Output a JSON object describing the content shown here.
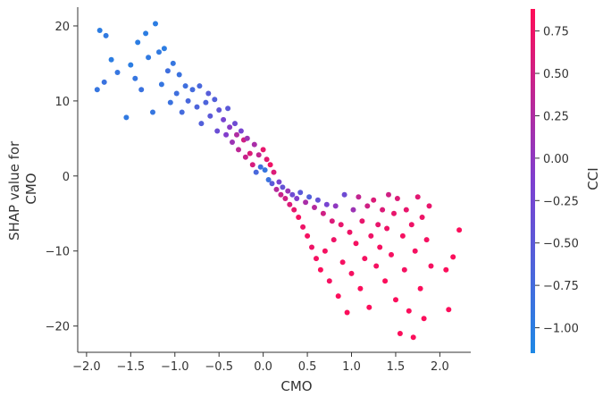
{
  "chart_data": {
    "type": "scatter",
    "title": "",
    "xlabel": "CMO",
    "ylabel": "SHAP value for\nCMO",
    "xlim": [
      -2.1,
      2.35
    ],
    "ylim": [
      -23.5,
      22.5
    ],
    "xticks": [
      -2.0,
      -1.5,
      -1.0,
      -0.5,
      0.0,
      0.5,
      1.0,
      1.5,
      2.0
    ],
    "xtick_labels": [
      "−2.0",
      "−1.5",
      "−1.0",
      "−0.5",
      "0.0",
      "0.5",
      "1.0",
      "1.5",
      "2.0"
    ],
    "yticks": [
      20,
      10,
      0,
      -10,
      -20
    ],
    "ytick_labels": [
      "20",
      "10",
      "0",
      "−10",
      "−20"
    ],
    "grid": false,
    "colorbar": {
      "label": "CCI",
      "range": [
        -1.15,
        0.88
      ],
      "ticks": [
        0.75,
        0.5,
        0.25,
        0.0,
        -0.25,
        -0.5,
        -0.75,
        -1.0
      ],
      "tick_labels": [
        "0.75",
        "0.50",
        "0.25",
        "0.00",
        "−0.25",
        "−0.50",
        "−0.75",
        "−1.00"
      ],
      "color_low": "#1e88e5",
      "color_mid": "#7e3fd0",
      "color_high": "#ff0d57"
    },
    "series": [
      {
        "points": [
          [
            -1.85,
            19.4,
            -1.0
          ],
          [
            -1.78,
            18.7,
            -0.95
          ],
          [
            -1.88,
            11.5,
            -0.9
          ],
          [
            -1.8,
            12.5,
            -0.85
          ],
          [
            -1.72,
            15.5,
            -1.0
          ],
          [
            -1.65,
            13.8,
            -0.9
          ],
          [
            -1.55,
            7.8,
            -0.95
          ],
          [
            -1.5,
            14.8,
            -1.0
          ],
          [
            -1.45,
            13.0,
            -0.9
          ],
          [
            -1.42,
            17.8,
            -1.0
          ],
          [
            -1.38,
            11.5,
            -0.85
          ],
          [
            -1.33,
            19.0,
            -1.0
          ],
          [
            -1.3,
            15.8,
            -0.95
          ],
          [
            -1.25,
            8.5,
            -0.9
          ],
          [
            -1.22,
            20.3,
            -1.0
          ],
          [
            -1.18,
            16.5,
            -0.95
          ],
          [
            -1.15,
            12.2,
            -0.9
          ],
          [
            -1.12,
            17.0,
            -1.0
          ],
          [
            -1.08,
            14.0,
            -0.8
          ],
          [
            -1.05,
            9.8,
            -0.85
          ],
          [
            -1.02,
            15.0,
            -0.9
          ],
          [
            -0.98,
            11.0,
            -0.8
          ],
          [
            -0.95,
            13.5,
            -0.85
          ],
          [
            -0.92,
            8.5,
            -0.75
          ],
          [
            -0.88,
            12.0,
            -0.8
          ],
          [
            -0.85,
            10.0,
            -0.7
          ],
          [
            -0.8,
            11.5,
            -0.75
          ],
          [
            -0.75,
            9.2,
            -0.65
          ],
          [
            -0.72,
            12.0,
            -0.7
          ],
          [
            -0.7,
            7.0,
            -0.6
          ],
          [
            -0.65,
            9.8,
            -0.65
          ],
          [
            -0.62,
            11.0,
            -0.55
          ],
          [
            -0.6,
            8.0,
            -0.5
          ],
          [
            -0.55,
            10.2,
            -0.6
          ],
          [
            -0.52,
            6.0,
            -0.35
          ],
          [
            -0.5,
            8.8,
            -0.45
          ],
          [
            -0.45,
            7.5,
            -0.2
          ],
          [
            -0.42,
            5.5,
            -0.1
          ],
          [
            -0.4,
            9.0,
            -0.5
          ],
          [
            -0.38,
            6.5,
            -0.05
          ],
          [
            -0.35,
            4.5,
            0.1
          ],
          [
            -0.32,
            7.0,
            -0.3
          ],
          [
            -0.3,
            5.5,
            0.25
          ],
          [
            -0.28,
            3.5,
            0.35
          ],
          [
            -0.25,
            6.0,
            -0.2
          ],
          [
            -0.22,
            4.8,
            0.5
          ],
          [
            -0.2,
            2.5,
            0.45
          ],
          [
            -0.18,
            5.0,
            0.1
          ],
          [
            -0.15,
            3.0,
            0.6
          ],
          [
            -0.12,
            1.5,
            0.55
          ],
          [
            -0.1,
            4.2,
            0.2
          ],
          [
            -0.08,
            0.5,
            -0.7
          ],
          [
            -0.05,
            2.8,
            0.4
          ],
          [
            -0.03,
            1.2,
            -0.8
          ],
          [
            0.0,
            3.5,
            0.7
          ],
          [
            0.02,
            0.8,
            -0.9
          ],
          [
            0.04,
            2.2,
            0.65
          ],
          [
            0.06,
            -0.5,
            -0.85
          ],
          [
            0.08,
            1.5,
            0.75
          ],
          [
            0.1,
            -1.0,
            -0.5
          ],
          [
            0.12,
            0.5,
            0.6
          ],
          [
            0.15,
            -1.8,
            0.3
          ],
          [
            0.18,
            -0.8,
            -0.2
          ],
          [
            0.2,
            -2.5,
            0.45
          ],
          [
            0.22,
            -1.5,
            -0.4
          ],
          [
            0.25,
            -3.0,
            0.5
          ],
          [
            0.28,
            -2.0,
            0.1
          ],
          [
            0.3,
            -3.8,
            0.6
          ],
          [
            0.33,
            -2.5,
            -0.3
          ],
          [
            0.35,
            -4.5,
            0.7
          ],
          [
            0.38,
            -3.0,
            -0.1
          ],
          [
            0.4,
            -5.5,
            0.8
          ],
          [
            0.42,
            -2.2,
            -0.5
          ],
          [
            0.45,
            -6.8,
            0.75
          ],
          [
            0.48,
            -3.5,
            0.2
          ],
          [
            0.5,
            -8.0,
            0.8
          ],
          [
            0.52,
            -2.8,
            -0.6
          ],
          [
            0.55,
            -9.5,
            0.75
          ],
          [
            0.58,
            -4.2,
            0.3
          ],
          [
            0.6,
            -11.0,
            0.8
          ],
          [
            0.62,
            -3.2,
            -0.4
          ],
          [
            0.65,
            -12.5,
            0.85
          ],
          [
            0.68,
            -5.0,
            0.5
          ],
          [
            0.7,
            -10.0,
            0.8
          ],
          [
            0.72,
            -3.8,
            -0.2
          ],
          [
            0.75,
            -14.0,
            0.8
          ],
          [
            0.78,
            -6.0,
            0.6
          ],
          [
            0.8,
            -8.5,
            0.75
          ],
          [
            0.82,
            -4.0,
            0.0
          ],
          [
            0.85,
            -16.0,
            0.85
          ],
          [
            0.88,
            -6.5,
            0.7
          ],
          [
            0.9,
            -11.5,
            0.8
          ],
          [
            0.92,
            -2.5,
            -0.3
          ],
          [
            0.95,
            -18.2,
            0.85
          ],
          [
            0.98,
            -7.5,
            0.75
          ],
          [
            1.0,
            -13.0,
            0.8
          ],
          [
            1.02,
            -4.5,
            0.1
          ],
          [
            1.05,
            -9.0,
            0.8
          ],
          [
            1.08,
            -2.8,
            0.4
          ],
          [
            1.1,
            -15.0,
            0.85
          ],
          [
            1.12,
            -6.0,
            0.7
          ],
          [
            1.15,
            -11.0,
            0.8
          ],
          [
            1.18,
            -4.0,
            0.5
          ],
          [
            1.2,
            -17.5,
            0.85
          ],
          [
            1.22,
            -8.0,
            0.75
          ],
          [
            1.25,
            -3.2,
            0.6
          ],
          [
            1.28,
            -12.0,
            0.8
          ],
          [
            1.3,
            -6.5,
            0.7
          ],
          [
            1.32,
            -9.5,
            0.8
          ],
          [
            1.35,
            -4.5,
            0.6
          ],
          [
            1.38,
            -14.0,
            0.85
          ],
          [
            1.4,
            -7.0,
            0.75
          ],
          [
            1.42,
            -2.5,
            0.5
          ],
          [
            1.45,
            -10.5,
            0.8
          ],
          [
            1.48,
            -5.0,
            0.7
          ],
          [
            1.5,
            -16.5,
            0.85
          ],
          [
            1.52,
            -3.0,
            0.6
          ],
          [
            1.55,
            -21.0,
            0.85
          ],
          [
            1.58,
            -8.0,
            0.8
          ],
          [
            1.6,
            -12.5,
            0.8
          ],
          [
            1.62,
            -4.5,
            0.7
          ],
          [
            1.65,
            -18.0,
            0.85
          ],
          [
            1.68,
            -6.5,
            0.75
          ],
          [
            1.7,
            -21.5,
            0.85
          ],
          [
            1.72,
            -10.0,
            0.8
          ],
          [
            1.75,
            -2.8,
            0.65
          ],
          [
            1.78,
            -15.0,
            0.85
          ],
          [
            1.8,
            -5.5,
            0.75
          ],
          [
            1.82,
            -19.0,
            0.85
          ],
          [
            1.85,
            -8.5,
            0.8
          ],
          [
            1.88,
            -4.0,
            0.7
          ],
          [
            1.9,
            -12.0,
            0.8
          ],
          [
            2.07,
            -12.5,
            0.85
          ],
          [
            2.1,
            -17.8,
            0.85
          ],
          [
            2.15,
            -10.8,
            0.85
          ],
          [
            2.22,
            -7.2,
            0.85
          ]
        ]
      }
    ]
  }
}
